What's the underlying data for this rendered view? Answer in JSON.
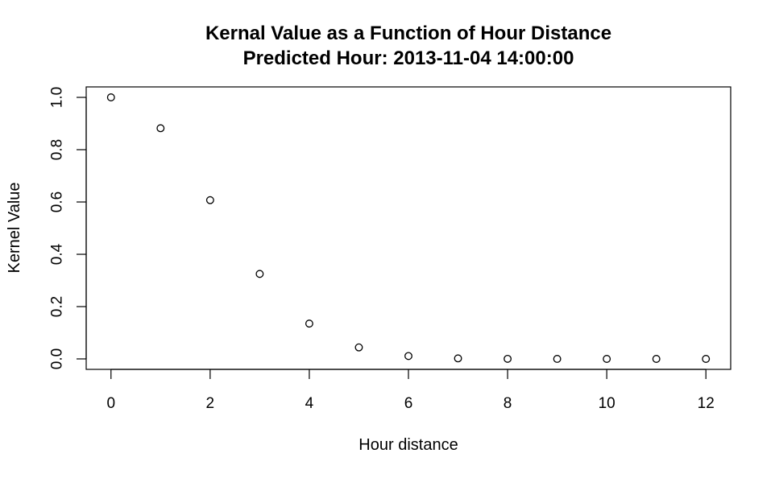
{
  "chart_data": {
    "type": "scatter",
    "title": "Kernal Value as a Function of Hour Distance",
    "subtitle": "Predicted Hour: 2013-11-04 14:00:00",
    "xlabel": "Hour distance",
    "ylabel": "Kernel Value",
    "xlim": [
      -0.5,
      12.5
    ],
    "ylim": [
      -0.04,
      1.04
    ],
    "xticks": [
      "0",
      "2",
      "4",
      "6",
      "8",
      "10",
      "12"
    ],
    "yticks": [
      "0.0",
      "0.2",
      "0.4",
      "0.6",
      "0.8",
      "1.0"
    ],
    "grid": false,
    "legend": "none",
    "x": [
      0,
      1,
      2,
      3,
      4,
      5,
      6,
      7,
      8,
      9,
      10,
      11,
      12
    ],
    "y": [
      1.0,
      0.882,
      0.607,
      0.325,
      0.135,
      0.044,
      0.011,
      0.002,
      0.0003,
      4e-05,
      4e-06,
      3e-07,
      2e-08
    ]
  }
}
